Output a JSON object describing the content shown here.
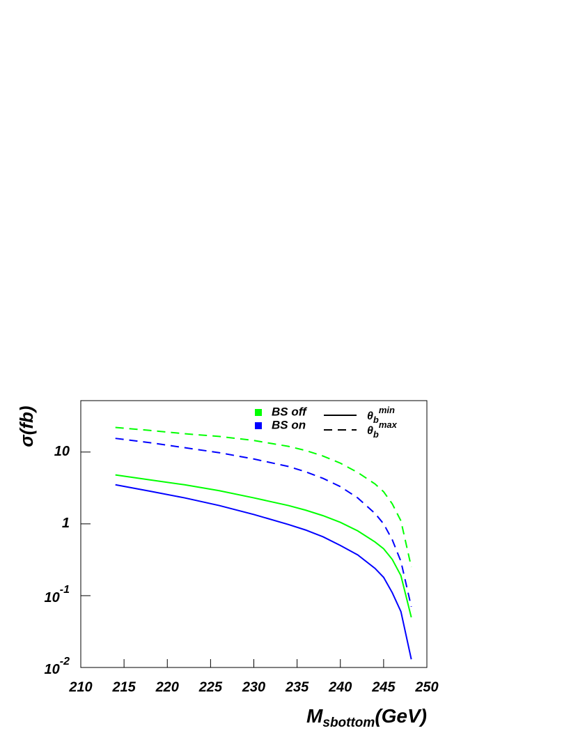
{
  "chart_data": {
    "type": "line",
    "log_y": true,
    "ylabel": "σ(fb)",
    "xlabel": {
      "main": "M",
      "sub": "sbottom",
      "tail": "(GeV)"
    },
    "x": [
      214,
      218,
      222,
      226,
      230,
      234,
      236,
      238,
      240,
      242,
      244,
      245,
      246,
      247,
      248.2
    ],
    "series": [
      {
        "color": "#00ff00",
        "dash": true,
        "values": [
          22,
          20,
          18,
          16.5,
          14.5,
          12,
          10.5,
          8.8,
          7,
          5.2,
          3.6,
          2.8,
          1.9,
          1.1,
          0.25
        ]
      },
      {
        "color": "#0000ff",
        "dash": true,
        "values": [
          15.5,
          13.5,
          11.5,
          9.8,
          8,
          6.3,
          5.3,
          4.3,
          3.3,
          2.3,
          1.4,
          1.0,
          0.6,
          0.3,
          0.07
        ]
      },
      {
        "color": "#00ff00",
        "dash": false,
        "values": [
          4.8,
          4.1,
          3.5,
          2.9,
          2.3,
          1.8,
          1.55,
          1.3,
          1.05,
          0.8,
          0.56,
          0.45,
          0.32,
          0.19,
          0.05
        ]
      },
      {
        "color": "#0000ff",
        "dash": false,
        "values": [
          3.5,
          2.85,
          2.3,
          1.8,
          1.35,
          0.98,
          0.82,
          0.66,
          0.5,
          0.37,
          0.24,
          0.18,
          0.11,
          0.06,
          0.013
        ]
      }
    ],
    "legend": {
      "colors": [
        {
          "label": "BS off",
          "color": "#00ff00"
        },
        {
          "label": "BS on",
          "color": "#0000ff"
        }
      ],
      "styles": [
        {
          "symbol": "θ",
          "sub": "b",
          "sup": "min",
          "dash": false
        },
        {
          "symbol": "θ",
          "sub": "b",
          "sup": "max",
          "dash": true
        }
      ]
    },
    "xlim": [
      210,
      250
    ],
    "xticks": [
      210,
      215,
      220,
      225,
      230,
      235,
      240,
      245,
      250
    ],
    "ylim": [
      0.01,
      52
    ],
    "yticks": [
      {
        "value": 0.01,
        "label": "10^-2"
      },
      {
        "value": 0.1,
        "label": "10^-1"
      },
      1,
      10
    ]
  }
}
